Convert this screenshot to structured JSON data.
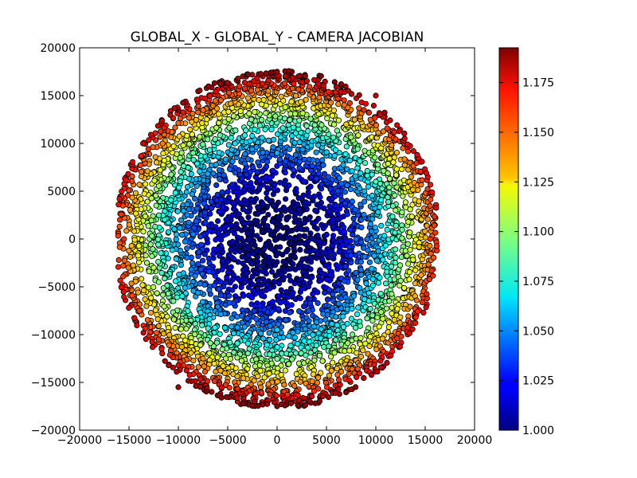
{
  "chart_data": {
    "type": "scatter",
    "title": "GLOBAL_X - GLOBAL_Y - CAMERA JACOBIAN",
    "xlabel": "",
    "ylabel": "",
    "xlim": [
      -20000,
      20000
    ],
    "ylim": [
      -20000,
      20000
    ],
    "xticks": [
      -20000,
      -15000,
      -10000,
      -5000,
      0,
      5000,
      10000,
      15000,
      20000
    ],
    "yticks": [
      -20000,
      -15000,
      -10000,
      -5000,
      0,
      5000,
      10000,
      15000,
      20000
    ],
    "xtick_labels": [
      "−20000",
      "−15000",
      "−10000",
      "−5000",
      "0",
      "5000",
      "10000",
      "15000",
      "20000"
    ],
    "ytick_labels": [
      "−20000",
      "−15000",
      "−10000",
      "−5000",
      "0",
      "5000",
      "10000",
      "15000",
      "20000"
    ],
    "grid": false,
    "colormap": "jet",
    "colorbar": {
      "range": [
        1.0,
        1.1925
      ],
      "ticks": [
        1.0,
        1.025,
        1.05,
        1.075,
        1.1,
        1.125,
        1.15,
        1.175
      ],
      "tick_labels": [
        "1.000",
        "1.025",
        "1.050",
        "1.075",
        "1.100",
        "1.125",
        "1.150",
        "1.175"
      ]
    },
    "points_description": "roughly circular focal-plane footprint of ~16000 radius made of CCD blocks; color encodes camera jacobian rising from 1.000 at center to ~1.19 at edge",
    "points": [
      [
        0,
        0,
        1.0
      ],
      [
        2000,
        1000,
        1.003
      ],
      [
        -2500,
        -1500,
        1.005
      ],
      [
        4000,
        -2000,
        1.01
      ],
      [
        -4500,
        2500,
        1.015
      ],
      [
        6000,
        3000,
        1.025
      ],
      [
        -6500,
        -3500,
        1.03
      ],
      [
        8000,
        0,
        1.045
      ],
      [
        -8500,
        500,
        1.05
      ],
      [
        0,
        9000,
        1.06
      ],
      [
        0,
        -9500,
        1.065
      ],
      [
        10000,
        6000,
        1.085
      ],
      [
        -10500,
        -6500,
        1.095
      ],
      [
        12000,
        3000,
        1.105
      ],
      [
        -12500,
        -3000,
        1.11
      ],
      [
        7000,
        12000,
        1.13
      ],
      [
        -7500,
        -12500,
        1.14
      ],
      [
        14000,
        7000,
        1.15
      ],
      [
        -14500,
        7500,
        1.155
      ],
      [
        4000,
        16500,
        1.17
      ],
      [
        -4000,
        -17000,
        1.175
      ],
      [
        15500,
        0,
        1.16
      ],
      [
        -15500,
        0,
        1.16
      ],
      [
        10000,
        15000,
        1.18
      ],
      [
        -10000,
        -15500,
        1.185
      ],
      [
        0,
        17500,
        1.19
      ],
      [
        0,
        -17500,
        1.19
      ]
    ]
  }
}
